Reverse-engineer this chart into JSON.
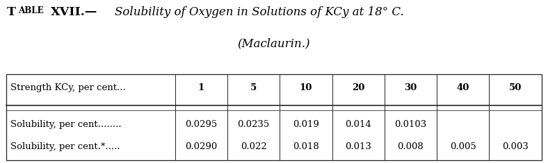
{
  "title_smallcaps": "Table XVII.—",
  "title_italic": "Solubility of Oxygen in Solutions of KCy at 18° C.",
  "title_line2": "(Maclaurin.)",
  "col_headers": [
    "1",
    "5",
    "10",
    "20",
    "30",
    "40",
    "50"
  ],
  "header_label": "Strength KCy, per cent...",
  "row1_label": "Solubility, per cent........",
  "row2_label": "Solubility, per cent.*.....",
  "row1_values": [
    "0.0295",
    "0.0235",
    "0.019",
    "0.014",
    "0.0103",
    "",
    ""
  ],
  "row2_values": [
    "0.0290",
    "0.022",
    "0.018",
    "0.013",
    "0.008",
    "0.005",
    "0.003"
  ],
  "bg_color": "#ffffff",
  "text_color": "#000000",
  "title_fontsize": 12.0,
  "table_fontsize": 9.5,
  "fig_width": 7.88,
  "fig_height": 2.35
}
